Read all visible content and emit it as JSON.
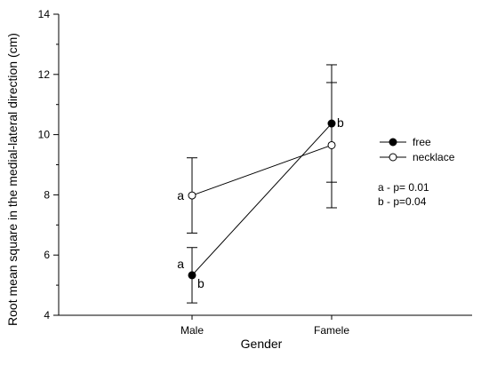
{
  "chart_data": {
    "type": "line",
    "title": "",
    "xlabel": "Gender",
    "ylabel": "Root mean square in the medial-lateral direction (cm)",
    "categories": [
      "Male",
      "Famele"
    ],
    "ylim": [
      4,
      14
    ],
    "yticks": [
      4,
      6,
      8,
      10,
      12,
      14
    ],
    "grid": false,
    "legend_position": "right",
    "series": [
      {
        "name": "free",
        "marker": "filled-circle",
        "values": [
          5.33,
          10.37
        ],
        "error": [
          0.92,
          1.95
        ],
        "point_labels": [
          [
            "a",
            "b"
          ],
          [
            "b"
          ]
        ]
      },
      {
        "name": "necklace",
        "marker": "open-circle",
        "values": [
          7.98,
          9.65
        ],
        "error": [
          1.25,
          2.08
        ],
        "point_labels": [
          [
            "a"
          ],
          []
        ]
      }
    ],
    "annotations": [
      "a - p= 0.01",
      "b - p=0.04"
    ]
  }
}
